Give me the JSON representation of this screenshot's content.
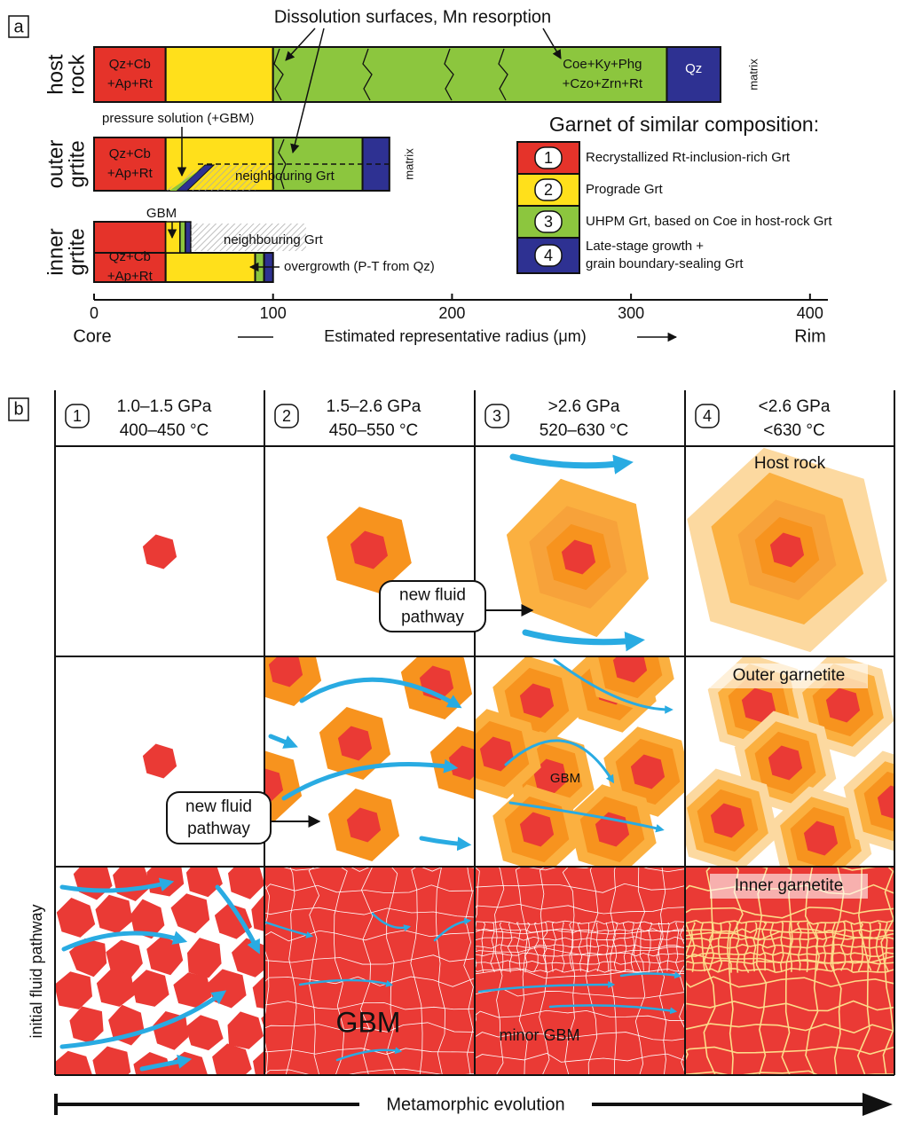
{
  "panel_a": {
    "label": "a",
    "rows": [
      {
        "name": [
          "host",
          "rock"
        ],
        "segments": [
          40,
          60,
          220,
          30
        ]
      },
      {
        "name": [
          "outer",
          "grtite"
        ],
        "segments": [
          40,
          60,
          50,
          15
        ]
      },
      {
        "name": [
          "inner",
          "grtite"
        ],
        "segments": [
          40,
          50,
          5,
          5
        ]
      }
    ],
    "zone_labels": {
      "core": [
        "Qz+Cb",
        "+Ap+Rt"
      ],
      "host_green": [
        "Coe+Ky+Phg",
        "+Czo+Zrn+Rt"
      ],
      "host_blue": "Qz"
    },
    "matrix": "matrix",
    "annotations": {
      "dissolution": "Dissolution surfaces, Mn resorption",
      "pressure_solution": "pressure solution (+GBM)",
      "neighbouring": "neighbouring Grt",
      "gbm": "GBM",
      "overgrowth": "overgrowth (P-T from Qz)"
    },
    "axis": {
      "xlim": [
        0,
        410
      ],
      "xticks": [
        0,
        100,
        200,
        300,
        400
      ],
      "left": "Core",
      "label": "Estimated representative radius (μm)",
      "right": "Rim"
    },
    "legend": {
      "title": "Garnet of similar composition:",
      "items": [
        {
          "number": "1",
          "color": "#e5332a",
          "text": [
            "Recrystallized Rt-inclusion-rich Grt"
          ]
        },
        {
          "number": "2",
          "color": "#ffe01b",
          "text": [
            "Prograde Grt"
          ]
        },
        {
          "number": "3",
          "color": "#8cc63e",
          "text": [
            "UHPM Grt, based on Coe in host-rock Grt"
          ]
        },
        {
          "number": "4",
          "color": "#2e3192",
          "text": [
            "Late-stage growth +",
            "grain boundary-sealing Grt"
          ]
        }
      ]
    }
  },
  "panel_b": {
    "label": "b",
    "columns": [
      {
        "number": "1",
        "pressure": "1.0–1.5 GPa",
        "temperature": "400–450 °C"
      },
      {
        "number": "2",
        "pressure": "1.5–2.6 GPa",
        "temperature": "450–550 °C"
      },
      {
        "number": "3",
        "pressure": ">2.6 GPa",
        "temperature": "520–630 °C"
      },
      {
        "number": "4",
        "pressure": "<2.6 GPa",
        "temperature": "<630 °C"
      }
    ],
    "row_labels": {
      "host": "Host rock",
      "outer": "Outer garnetite",
      "inner": "Inner garnetite"
    },
    "callout": [
      "new fluid",
      "pathway"
    ],
    "gbm": "GBM",
    "gbm_large": "GBM",
    "minor_gbm": "minor GBM",
    "side_label": "initial fluid pathway",
    "footer": "Metamorphic evolution"
  }
}
